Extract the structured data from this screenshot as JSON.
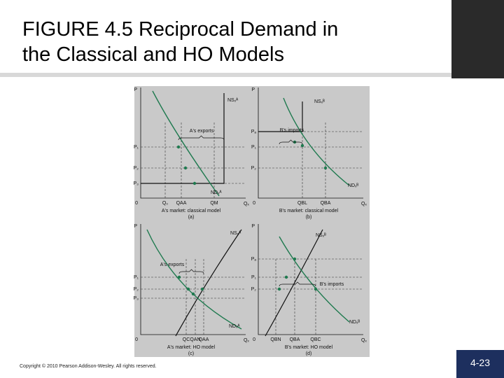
{
  "header": {
    "title_line1": "FIGURE 4.5  Reciprocal Demand in",
    "title_line2": "the Classical and HO Models"
  },
  "figure": {
    "panels": [
      {
        "y_axis": "P",
        "y_ticks": [
          "P₁",
          "P₂",
          "P₃"
        ],
        "origin": "0",
        "x_ticks": [
          "Q₀",
          "QAA",
          "QM"
        ],
        "x_axis": "Qₓ",
        "supply_label": "NSₓᴬ",
        "demand_label": "NDₓᴬ",
        "region_label": "A's exports",
        "caption": "A's market: classical model",
        "letter": "(a)"
      },
      {
        "y_axis": "P",
        "y_ticks": [
          "Pₐ",
          "P₁",
          "P₂"
        ],
        "origin": "0",
        "x_ticks": [
          "QBL",
          "QBA"
        ],
        "x_axis": "Qₓ",
        "supply_label": "NSₓᴮ",
        "demand_label": "NDₓᴮ",
        "region_label": "B's imports",
        "caption": "B's market: classical model",
        "letter": "(b)"
      },
      {
        "y_axis": "P",
        "y_ticks": [
          "P₁",
          "P₂",
          "P₃"
        ],
        "origin": "0",
        "x_ticks": [
          "QC",
          "QAN",
          "QAA"
        ],
        "x_axis": "Qₓ",
        "supply_label": "NSₓᴬ",
        "demand_label": "NDₓᴬ",
        "region_label": "A's exports",
        "caption": "A's market: HO model",
        "letter": "(c)"
      },
      {
        "y_axis": "P",
        "y_ticks": [
          "Pₐ",
          "P₁",
          "P₂"
        ],
        "origin": "0",
        "x_ticks": [
          "QBN",
          "QBA",
          "QBC"
        ],
        "x_axis": "Qₓ",
        "supply_label": "NSₓᴮ",
        "demand_label": "NDₓᴮ",
        "region_label": "B's imports",
        "caption": "B's market: HO model",
        "letter": "(d)"
      }
    ]
  },
  "footer": {
    "copyright": "Copyright © 2010 Pearson Addison-Wesley. All rights reserved.",
    "page_number": "4-23"
  }
}
